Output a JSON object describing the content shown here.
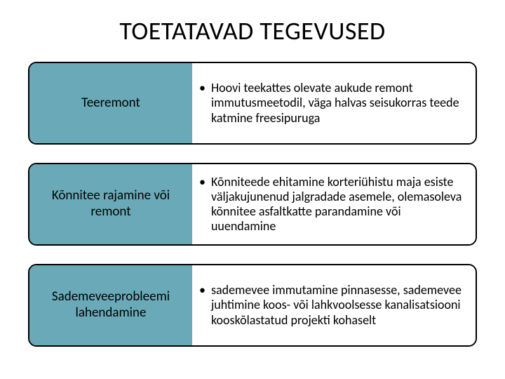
{
  "title": "TOETATAVAD TEGEVUSED",
  "colors": {
    "leftFill": "#6aaab8",
    "rightFill": "#ffffff",
    "rowBorder": "#000000",
    "textColor": "#000000",
    "bgColor": "#ffffff"
  },
  "typography": {
    "titleFontSize": 36,
    "labelFontSize": 19,
    "bodyFontSize": 18
  },
  "rows": [
    {
      "label": "Teeremont",
      "bullet": "Hoovi teekattes olevate aukude remont immutusmeetodil, väga halvas seisukorras teede katmine freesipuruga"
    },
    {
      "label": "Kõnnitee rajamine või remont",
      "bullet": "Kõnniteede ehitamine korteriühistu maja esiste väljakujunenud jalgradade asemele, olemasoleva kõnnitee asfaltkatte parandamine või uuendamine"
    },
    {
      "label": "Sademeveeprobleemi lahendamine",
      "bullet": "sademevee immutamine pinnasesse, sademevee juhtimine koos- või lahkvoolsesse kanalisatsiooni kooskõlastatud projekti kohaselt"
    }
  ]
}
